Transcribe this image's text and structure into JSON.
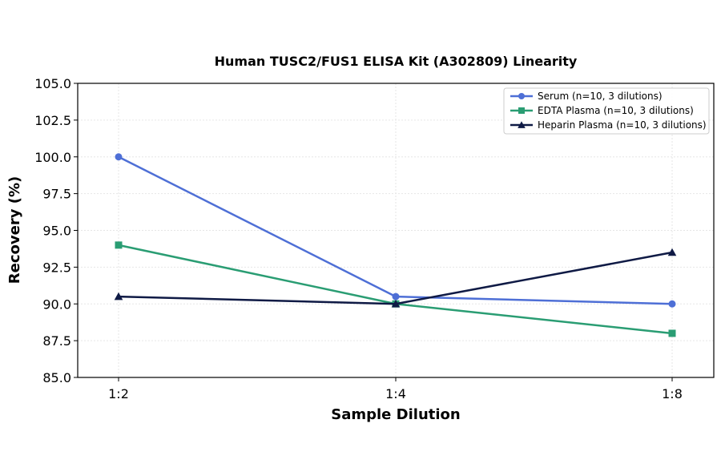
{
  "chart_data": {
    "type": "line",
    "title": "Human TUSC2/FUS1 ELISA Kit (A302809) Linearity",
    "xlabel": "Sample Dilution",
    "ylabel": "Recovery (%)",
    "categories": [
      "1:2",
      "1:4",
      "1:8"
    ],
    "ylim": [
      85.0,
      105.0
    ],
    "yticks": [
      "85.0",
      "87.5",
      "90.0",
      "92.5",
      "95.0",
      "97.5",
      "100.0",
      "102.5",
      "105.0"
    ],
    "grid": true,
    "legend_position": "top-right",
    "series": [
      {
        "name": "Serum (n=10, 3 dilutions)",
        "values": [
          100.0,
          90.5,
          90.0
        ],
        "color": "#4e6fd6",
        "marker": "circle"
      },
      {
        "name": "EDTA Plasma (n=10, 3 dilutions)",
        "values": [
          94.0,
          90.0,
          88.0
        ],
        "color": "#2a9d73",
        "marker": "square"
      },
      {
        "name": "Heparin Plasma (n=10, 3 dilutions)",
        "values": [
          90.5,
          90.0,
          93.5
        ],
        "color": "#0f1a45",
        "marker": "triangle"
      }
    ]
  }
}
